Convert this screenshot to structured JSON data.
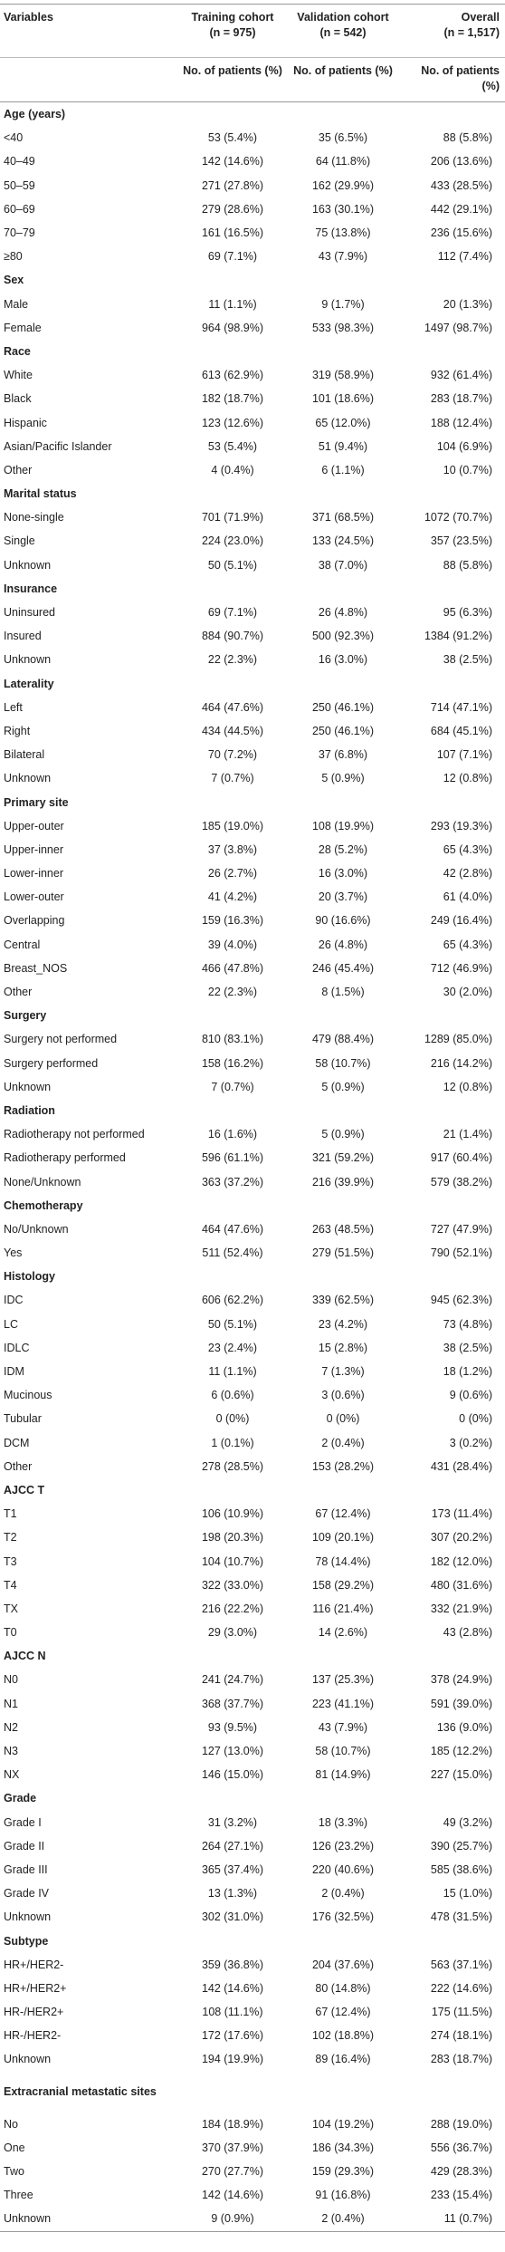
{
  "table": {
    "header": {
      "variables": "Variables",
      "columns": [
        {
          "name": "Training cohort",
          "n": "(n = 975)"
        },
        {
          "name": "Validation cohort",
          "n": "(n = 542)"
        },
        {
          "name": "Overall",
          "n": "(n = 1,517)"
        }
      ],
      "subheader": [
        "No. of patients (%)",
        "No. of patients (%)",
        "No. of patients (%)"
      ]
    },
    "sections": [
      {
        "title": "Age (years)",
        "rows": [
          [
            "<40",
            "53 (5.4%)",
            "35 (6.5%)",
            "88 (5.8%)"
          ],
          [
            "40–49",
            "142 (14.6%)",
            "64 (11.8%)",
            "206 (13.6%)"
          ],
          [
            "50–59",
            "271 (27.8%)",
            "162 (29.9%)",
            "433 (28.5%)"
          ],
          [
            "60–69",
            "279 (28.6%)",
            "163 (30.1%)",
            "442 (29.1%)"
          ],
          [
            "70–79",
            "161 (16.5%)",
            "75 (13.8%)",
            "236 (15.6%)"
          ],
          [
            "≥80",
            "69 (7.1%)",
            "43 (7.9%)",
            "112 (7.4%)"
          ]
        ]
      },
      {
        "title": "Sex",
        "rows": [
          [
            "Male",
            "11 (1.1%)",
            "9 (1.7%)",
            "20 (1.3%)"
          ],
          [
            "Female",
            "964 (98.9%)",
            "533 (98.3%)",
            "1497 (98.7%)"
          ]
        ]
      },
      {
        "title": "Race",
        "rows": [
          [
            "White",
            "613 (62.9%)",
            "319 (58.9%)",
            "932 (61.4%)"
          ],
          [
            "Black",
            "182 (18.7%)",
            "101 (18.6%)",
            "283 (18.7%)"
          ],
          [
            "Hispanic",
            "123 (12.6%)",
            "65 (12.0%)",
            "188 (12.4%)"
          ],
          [
            "Asian/Pacific Islander",
            "53 (5.4%)",
            "51 (9.4%)",
            "104 (6.9%)"
          ],
          [
            "Other",
            "4 (0.4%)",
            "6 (1.1%)",
            "10 (0.7%)"
          ]
        ]
      },
      {
        "title": "Marital status",
        "rows": [
          [
            "None-single",
            "701 (71.9%)",
            "371 (68.5%)",
            "1072 (70.7%)"
          ],
          [
            "Single",
            "224 (23.0%)",
            "133 (24.5%)",
            "357 (23.5%)"
          ],
          [
            "Unknown",
            "50 (5.1%)",
            "38 (7.0%)",
            "88 (5.8%)"
          ]
        ]
      },
      {
        "title": "Insurance",
        "rows": [
          [
            "Uninsured",
            "69 (7.1%)",
            "26 (4.8%)",
            "95 (6.3%)"
          ],
          [
            "Insured",
            "884 (90.7%)",
            "500 (92.3%)",
            "1384 (91.2%)"
          ],
          [
            "Unknown",
            "22 (2.3%)",
            "16 (3.0%)",
            "38 (2.5%)"
          ]
        ]
      },
      {
        "title": "Laterality",
        "rows": [
          [
            "Left",
            "464 (47.6%)",
            "250 (46.1%)",
            "714 (47.1%)"
          ],
          [
            "Right",
            "434 (44.5%)",
            "250 (46.1%)",
            "684 (45.1%)"
          ],
          [
            "Bilateral",
            "70 (7.2%)",
            "37 (6.8%)",
            "107 (7.1%)"
          ],
          [
            "Unknown",
            "7 (0.7%)",
            "5 (0.9%)",
            "12 (0.8%)"
          ]
        ]
      },
      {
        "title": "Primary site",
        "rows": [
          [
            "Upper-outer",
            "185 (19.0%)",
            "108 (19.9%)",
            "293 (19.3%)"
          ],
          [
            "Upper-inner",
            "37 (3.8%)",
            "28 (5.2%)",
            "65 (4.3%)"
          ],
          [
            "Lower-inner",
            "26 (2.7%)",
            "16 (3.0%)",
            "42 (2.8%)"
          ],
          [
            "Lower-outer",
            "41 (4.2%)",
            "20 (3.7%)",
            "61 (4.0%)"
          ],
          [
            "Overlapping",
            "159 (16.3%)",
            "90 (16.6%)",
            "249 (16.4%)"
          ],
          [
            "Central",
            "39 (4.0%)",
            "26 (4.8%)",
            "65 (4.3%)"
          ],
          [
            "Breast_NOS",
            "466 (47.8%)",
            "246 (45.4%)",
            "712 (46.9%)"
          ],
          [
            "Other",
            "22 (2.3%)",
            "8 (1.5%)",
            "30 (2.0%)"
          ]
        ]
      },
      {
        "title": "Surgery",
        "rows": [
          [
            "Surgery not performed",
            "810 (83.1%)",
            "479 (88.4%)",
            "1289 (85.0%)"
          ],
          [
            "Surgery performed",
            "158 (16.2%)",
            "58 (10.7%)",
            "216 (14.2%)"
          ],
          [
            "Unknown",
            "7 (0.7%)",
            "5 (0.9%)",
            "12 (0.8%)"
          ]
        ]
      },
      {
        "title": "Radiation",
        "rows": [
          [
            "Radiotherapy not performed",
            "16 (1.6%)",
            "5 (0.9%)",
            "21 (1.4%)"
          ],
          [
            "Radiotherapy performed",
            "596 (61.1%)",
            "321 (59.2%)",
            "917 (60.4%)"
          ],
          [
            "None/Unknown",
            "363 (37.2%)",
            "216 (39.9%)",
            "579 (38.2%)"
          ]
        ]
      },
      {
        "title": "Chemotherapy",
        "rows": [
          [
            "No/Unknown",
            "464 (47.6%)",
            "263 (48.5%)",
            "727 (47.9%)"
          ],
          [
            "Yes",
            "511 (52.4%)",
            "279 (51.5%)",
            "790 (52.1%)"
          ]
        ]
      },
      {
        "title": "Histology",
        "rows": [
          [
            "IDC",
            "606 (62.2%)",
            "339 (62.5%)",
            "945 (62.3%)"
          ],
          [
            "LC",
            "50 (5.1%)",
            "23 (4.2%)",
            "73 (4.8%)"
          ],
          [
            "IDLC",
            "23 (2.4%)",
            "15 (2.8%)",
            "38 (2.5%)"
          ],
          [
            "IDM",
            "11 (1.1%)",
            "7 (1.3%)",
            "18 (1.2%)"
          ],
          [
            "Mucinous",
            "6 (0.6%)",
            "3 (0.6%)",
            "9 (0.6%)"
          ],
          [
            "Tubular",
            "0 (0%)",
            "0 (0%)",
            "0 (0%)"
          ],
          [
            "DCM",
            "1 (0.1%)",
            "2 (0.4%)",
            "3 (0.2%)"
          ],
          [
            "Other",
            "278 (28.5%)",
            "153 (28.2%)",
            "431 (28.4%)"
          ]
        ]
      },
      {
        "title": "AJCC T",
        "rows": [
          [
            "T1",
            "106 (10.9%)",
            "67 (12.4%)",
            "173 (11.4%)"
          ],
          [
            "T2",
            "198 (20.3%)",
            "109 (20.1%)",
            "307 (20.2%)"
          ],
          [
            "T3",
            "104 (10.7%)",
            "78 (14.4%)",
            "182 (12.0%)"
          ],
          [
            "T4",
            "322 (33.0%)",
            "158 (29.2%)",
            "480 (31.6%)"
          ],
          [
            "TX",
            "216 (22.2%)",
            "116 (21.4%)",
            "332 (21.9%)"
          ],
          [
            "T0",
            "29 (3.0%)",
            "14 (2.6%)",
            "43 (2.8%)"
          ]
        ]
      },
      {
        "title": "AJCC N",
        "rows": [
          [
            "N0",
            "241 (24.7%)",
            "137 (25.3%)",
            "378 (24.9%)"
          ],
          [
            "N1",
            "368 (37.7%)",
            "223 (41.1%)",
            "591 (39.0%)"
          ],
          [
            "N2",
            "93 (9.5%)",
            "43 (7.9%)",
            "136 (9.0%)"
          ],
          [
            "N3",
            "127 (13.0%)",
            "58 (10.7%)",
            "185 (12.2%)"
          ],
          [
            "NX",
            "146 (15.0%)",
            "81 (14.9%)",
            "227 (15.0%)"
          ]
        ]
      },
      {
        "title": "Grade",
        "rows": [
          [
            "Grade I",
            "31 (3.2%)",
            "18 (3.3%)",
            "49 (3.2%)"
          ],
          [
            "Grade II",
            "264 (27.1%)",
            "126 (23.2%)",
            "390 (25.7%)"
          ],
          [
            "Grade III",
            "365 (37.4%)",
            "220 (40.6%)",
            "585 (38.6%)"
          ],
          [
            "Grade IV",
            "13 (1.3%)",
            "2 (0.4%)",
            "15 (1.0%)"
          ],
          [
            "Unknown",
            "302 (31.0%)",
            "176 (32.5%)",
            "478 (31.5%)"
          ]
        ]
      },
      {
        "title": "Subtype",
        "rows": [
          [
            "HR+/HER2-",
            "359 (36.8%)",
            "204 (37.6%)",
            "563 (37.1%)"
          ],
          [
            "HR+/HER2+",
            "142 (14.6%)",
            "80 (14.8%)",
            "222 (14.6%)"
          ],
          [
            "HR-/HER2+",
            "108 (11.1%)",
            "67 (12.4%)",
            "175 (11.5%)"
          ],
          [
            "HR-/HER2-",
            "172 (17.6%)",
            "102 (18.8%)",
            "274 (18.1%)"
          ],
          [
            "Unknown",
            "194 (19.9%)",
            "89 (16.4%)",
            "283 (18.7%)"
          ]
        ]
      },
      {
        "title": "Extracranial metastatic sites",
        "rows": [
          [
            "No",
            "184 (18.9%)",
            "104 (19.2%)",
            "288 (19.0%)"
          ],
          [
            "One",
            "370 (37.9%)",
            "186 (34.3%)",
            "556 (36.7%)"
          ],
          [
            "Two",
            "270 (27.7%)",
            "159 (29.3%)",
            "429 (28.3%)"
          ],
          [
            "Three",
            "142 (14.6%)",
            "91 (16.8%)",
            "233 (15.4%)"
          ],
          [
            "Unknown",
            "9 (0.9%)",
            "2 (0.4%)",
            "11 (0.7%)"
          ]
        ]
      }
    ]
  }
}
